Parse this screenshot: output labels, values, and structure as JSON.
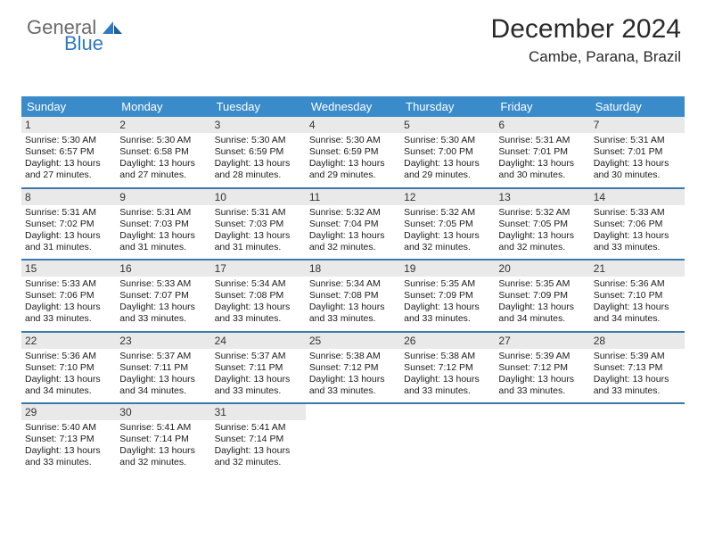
{
  "logo": {
    "line1": "General",
    "line2": "Blue"
  },
  "header": {
    "title": "December 2024",
    "location": "Cambe, Parana, Brazil"
  },
  "colors": {
    "header_bg": "#3a8bc9",
    "week_border": "#3a79a8",
    "daynum_bg": "#e9e9e9",
    "logo_gray": "#6a6a6a",
    "logo_blue": "#2f7ac0"
  },
  "days_of_week": [
    "Sunday",
    "Monday",
    "Tuesday",
    "Wednesday",
    "Thursday",
    "Friday",
    "Saturday"
  ],
  "weeks": [
    [
      {
        "n": "1",
        "sr": "Sunrise: 5:30 AM",
        "ss": "Sunset: 6:57 PM",
        "d1": "Daylight: 13 hours",
        "d2": "and 27 minutes."
      },
      {
        "n": "2",
        "sr": "Sunrise: 5:30 AM",
        "ss": "Sunset: 6:58 PM",
        "d1": "Daylight: 13 hours",
        "d2": "and 27 minutes."
      },
      {
        "n": "3",
        "sr": "Sunrise: 5:30 AM",
        "ss": "Sunset: 6:59 PM",
        "d1": "Daylight: 13 hours",
        "d2": "and 28 minutes."
      },
      {
        "n": "4",
        "sr": "Sunrise: 5:30 AM",
        "ss": "Sunset: 6:59 PM",
        "d1": "Daylight: 13 hours",
        "d2": "and 29 minutes."
      },
      {
        "n": "5",
        "sr": "Sunrise: 5:30 AM",
        "ss": "Sunset: 7:00 PM",
        "d1": "Daylight: 13 hours",
        "d2": "and 29 minutes."
      },
      {
        "n": "6",
        "sr": "Sunrise: 5:31 AM",
        "ss": "Sunset: 7:01 PM",
        "d1": "Daylight: 13 hours",
        "d2": "and 30 minutes."
      },
      {
        "n": "7",
        "sr": "Sunrise: 5:31 AM",
        "ss": "Sunset: 7:01 PM",
        "d1": "Daylight: 13 hours",
        "d2": "and 30 minutes."
      }
    ],
    [
      {
        "n": "8",
        "sr": "Sunrise: 5:31 AM",
        "ss": "Sunset: 7:02 PM",
        "d1": "Daylight: 13 hours",
        "d2": "and 31 minutes."
      },
      {
        "n": "9",
        "sr": "Sunrise: 5:31 AM",
        "ss": "Sunset: 7:03 PM",
        "d1": "Daylight: 13 hours",
        "d2": "and 31 minutes."
      },
      {
        "n": "10",
        "sr": "Sunrise: 5:31 AM",
        "ss": "Sunset: 7:03 PM",
        "d1": "Daylight: 13 hours",
        "d2": "and 31 minutes."
      },
      {
        "n": "11",
        "sr": "Sunrise: 5:32 AM",
        "ss": "Sunset: 7:04 PM",
        "d1": "Daylight: 13 hours",
        "d2": "and 32 minutes."
      },
      {
        "n": "12",
        "sr": "Sunrise: 5:32 AM",
        "ss": "Sunset: 7:05 PM",
        "d1": "Daylight: 13 hours",
        "d2": "and 32 minutes."
      },
      {
        "n": "13",
        "sr": "Sunrise: 5:32 AM",
        "ss": "Sunset: 7:05 PM",
        "d1": "Daylight: 13 hours",
        "d2": "and 32 minutes."
      },
      {
        "n": "14",
        "sr": "Sunrise: 5:33 AM",
        "ss": "Sunset: 7:06 PM",
        "d1": "Daylight: 13 hours",
        "d2": "and 33 minutes."
      }
    ],
    [
      {
        "n": "15",
        "sr": "Sunrise: 5:33 AM",
        "ss": "Sunset: 7:06 PM",
        "d1": "Daylight: 13 hours",
        "d2": "and 33 minutes."
      },
      {
        "n": "16",
        "sr": "Sunrise: 5:33 AM",
        "ss": "Sunset: 7:07 PM",
        "d1": "Daylight: 13 hours",
        "d2": "and 33 minutes."
      },
      {
        "n": "17",
        "sr": "Sunrise: 5:34 AM",
        "ss": "Sunset: 7:08 PM",
        "d1": "Daylight: 13 hours",
        "d2": "and 33 minutes."
      },
      {
        "n": "18",
        "sr": "Sunrise: 5:34 AM",
        "ss": "Sunset: 7:08 PM",
        "d1": "Daylight: 13 hours",
        "d2": "and 33 minutes."
      },
      {
        "n": "19",
        "sr": "Sunrise: 5:35 AM",
        "ss": "Sunset: 7:09 PM",
        "d1": "Daylight: 13 hours",
        "d2": "and 33 minutes."
      },
      {
        "n": "20",
        "sr": "Sunrise: 5:35 AM",
        "ss": "Sunset: 7:09 PM",
        "d1": "Daylight: 13 hours",
        "d2": "and 34 minutes."
      },
      {
        "n": "21",
        "sr": "Sunrise: 5:36 AM",
        "ss": "Sunset: 7:10 PM",
        "d1": "Daylight: 13 hours",
        "d2": "and 34 minutes."
      }
    ],
    [
      {
        "n": "22",
        "sr": "Sunrise: 5:36 AM",
        "ss": "Sunset: 7:10 PM",
        "d1": "Daylight: 13 hours",
        "d2": "and 34 minutes."
      },
      {
        "n": "23",
        "sr": "Sunrise: 5:37 AM",
        "ss": "Sunset: 7:11 PM",
        "d1": "Daylight: 13 hours",
        "d2": "and 34 minutes."
      },
      {
        "n": "24",
        "sr": "Sunrise: 5:37 AM",
        "ss": "Sunset: 7:11 PM",
        "d1": "Daylight: 13 hours",
        "d2": "and 33 minutes."
      },
      {
        "n": "25",
        "sr": "Sunrise: 5:38 AM",
        "ss": "Sunset: 7:12 PM",
        "d1": "Daylight: 13 hours",
        "d2": "and 33 minutes."
      },
      {
        "n": "26",
        "sr": "Sunrise: 5:38 AM",
        "ss": "Sunset: 7:12 PM",
        "d1": "Daylight: 13 hours",
        "d2": "and 33 minutes."
      },
      {
        "n": "27",
        "sr": "Sunrise: 5:39 AM",
        "ss": "Sunset: 7:12 PM",
        "d1": "Daylight: 13 hours",
        "d2": "and 33 minutes."
      },
      {
        "n": "28",
        "sr": "Sunrise: 5:39 AM",
        "ss": "Sunset: 7:13 PM",
        "d1": "Daylight: 13 hours",
        "d2": "and 33 minutes."
      }
    ],
    [
      {
        "n": "29",
        "sr": "Sunrise: 5:40 AM",
        "ss": "Sunset: 7:13 PM",
        "d1": "Daylight: 13 hours",
        "d2": "and 33 minutes."
      },
      {
        "n": "30",
        "sr": "Sunrise: 5:41 AM",
        "ss": "Sunset: 7:14 PM",
        "d1": "Daylight: 13 hours",
        "d2": "and 32 minutes."
      },
      {
        "n": "31",
        "sr": "Sunrise: 5:41 AM",
        "ss": "Sunset: 7:14 PM",
        "d1": "Daylight: 13 hours",
        "d2": "and 32 minutes."
      },
      {
        "empty": true
      },
      {
        "empty": true
      },
      {
        "empty": true
      },
      {
        "empty": true
      }
    ]
  ]
}
